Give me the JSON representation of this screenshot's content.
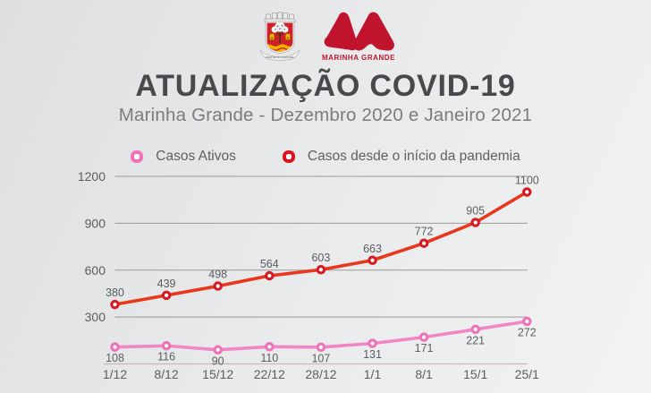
{
  "header": {
    "crest": {
      "caption": "MARINHA GRANDE"
    },
    "logo": {
      "caption": "MARINHA GRANDE"
    }
  },
  "title": "ATUALIZAÇÃO COVID-19",
  "subtitle": "Marinha Grande - Dezembro 2020 e Janeiro 2021",
  "legend": [
    {
      "label": "Casos Ativos",
      "color": "#ee72ba"
    },
    {
      "label": "Casos desde o início da pandemia",
      "color": "#da141f"
    }
  ],
  "colors": {
    "brand_red": "#c0142e",
    "active_line": "#f186c6",
    "active_marker": "#ee72ba",
    "total_line": "#e8371c",
    "total_marker": "#d41a22",
    "grid": "#97999c",
    "baseline": "#c9b6c0",
    "text": "#5b5e61"
  },
  "chart_data": {
    "type": "line",
    "title": "ATUALIZAÇÃO COVID-19",
    "subtitle": "Marinha Grande - Dezembro 2020 e Janeiro 2021",
    "categories": [
      "1/12",
      "8/12",
      "15/12",
      "22/12",
      "28/12",
      "1/1",
      "8/1",
      "15/1",
      "25/1"
    ],
    "series": [
      {
        "name": "Casos Ativos",
        "values": [
          108,
          116,
          90,
          110,
          107,
          131,
          171,
          221,
          272
        ],
        "color": "#f186c6",
        "marker_color": "#ee72ba",
        "label_position": "below"
      },
      {
        "name": "Casos desde o início da pandemia",
        "values": [
          380,
          439,
          498,
          564,
          603,
          663,
          772,
          905,
          1100
        ],
        "color": "#e8371c",
        "marker_color": "#d41a22",
        "label_position": "above"
      }
    ],
    "ylim": [
      0,
      1200
    ],
    "yticks": [
      300,
      600,
      900,
      1200
    ],
    "grid": true,
    "legend_position": "top",
    "xlabel": "",
    "ylabel": ""
  }
}
